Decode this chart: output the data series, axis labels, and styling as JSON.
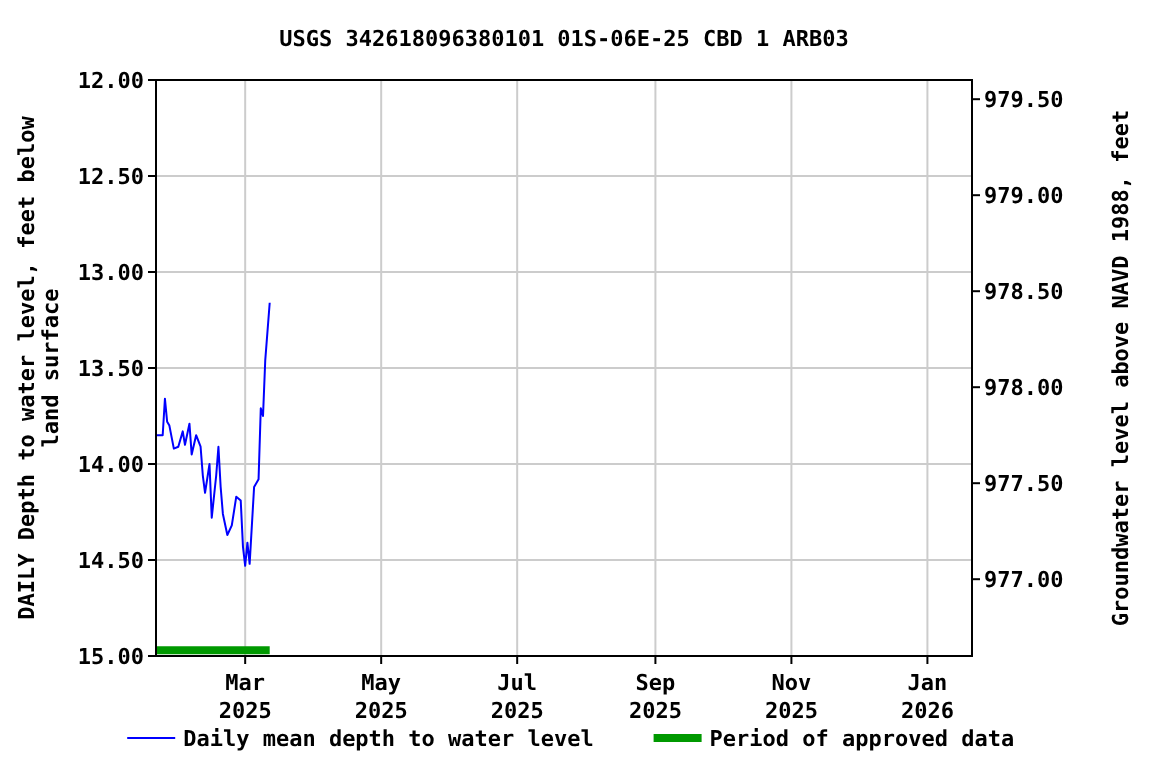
{
  "chart_data": {
    "type": "line",
    "title": "USGS 342618096380101 01S-06E-25 CBD 1 ARB03",
    "ylabel": "DAILY Depth to water level, feet below land surface",
    "y2label": "Groundwater level above NAVD 1988, feet",
    "x": [
      "2025-01-20",
      "2025-01-23",
      "2025-01-24",
      "2025-01-25",
      "2025-01-26",
      "2025-01-28",
      "2025-01-30",
      "2025-02-01",
      "2025-02-02",
      "2025-02-04",
      "2025-02-05",
      "2025-02-07",
      "2025-02-09",
      "2025-02-10",
      "2025-02-11",
      "2025-02-13",
      "2025-02-14",
      "2025-02-16",
      "2025-02-17",
      "2025-02-18",
      "2025-02-19",
      "2025-02-21",
      "2025-02-23",
      "2025-02-25",
      "2025-02-27",
      "2025-02-28",
      "2025-03-01",
      "2025-03-02",
      "2025-03-03",
      "2025-03-05",
      "2025-03-07",
      "2025-03-08",
      "2025-03-09",
      "2025-03-10",
      "2025-03-12"
    ],
    "series": [
      {
        "name": "Daily mean depth to water level",
        "color": "#0000ff",
        "values": [
          13.85,
          13.85,
          13.66,
          13.78,
          13.8,
          13.92,
          13.91,
          13.83,
          13.9,
          13.79,
          13.95,
          13.85,
          13.91,
          14.06,
          14.15,
          14.0,
          14.28,
          14.06,
          13.91,
          14.12,
          14.26,
          14.37,
          14.32,
          14.17,
          14.19,
          14.43,
          14.53,
          14.41,
          14.52,
          14.12,
          14.08,
          13.71,
          13.75,
          13.46,
          13.16
        ]
      },
      {
        "name": "Period of approved data",
        "color": "#009900",
        "x": [
          "2025-01-20",
          "2025-03-12"
        ],
        "values": [
          14.97,
          14.97
        ]
      }
    ],
    "xlim": [
      "2025-01-20",
      "2026-01-21"
    ],
    "xticks": [
      {
        "value": "2025-03-01",
        "label": "Mar 2025"
      },
      {
        "value": "2025-05-01",
        "label": "May 2025"
      },
      {
        "value": "2025-07-01",
        "label": "Jul 2025"
      },
      {
        "value": "2025-09-01",
        "label": "Sep 2025"
      },
      {
        "value": "2025-11-01",
        "label": "Nov 2025"
      },
      {
        "value": "2026-01-01",
        "label": "Jan 2026"
      }
    ],
    "ylim": [
      15,
      12
    ],
    "yticks": [
      {
        "value": 12,
        "label": "12.00"
      },
      {
        "value": 12.5,
        "label": "12.50"
      },
      {
        "value": 13,
        "label": "13.00"
      },
      {
        "value": 13.5,
        "label": "13.50"
      },
      {
        "value": 14,
        "label": "14.00"
      },
      {
        "value": 14.5,
        "label": "14.50"
      },
      {
        "value": 15,
        "label": "15.00"
      }
    ],
    "y2lim": [
      976.6,
      979.6
    ],
    "y2ticks": [
      {
        "value": 977,
        "label": "977.00"
      },
      {
        "value": 977.5,
        "label": "977.50"
      },
      {
        "value": 978,
        "label": "978.00"
      },
      {
        "value": 978.5,
        "label": "978.50"
      },
      {
        "value": 979,
        "label": "979.00"
      },
      {
        "value": 979.5,
        "label": "979.50"
      }
    ],
    "grid": true,
    "legend": "bottom"
  }
}
